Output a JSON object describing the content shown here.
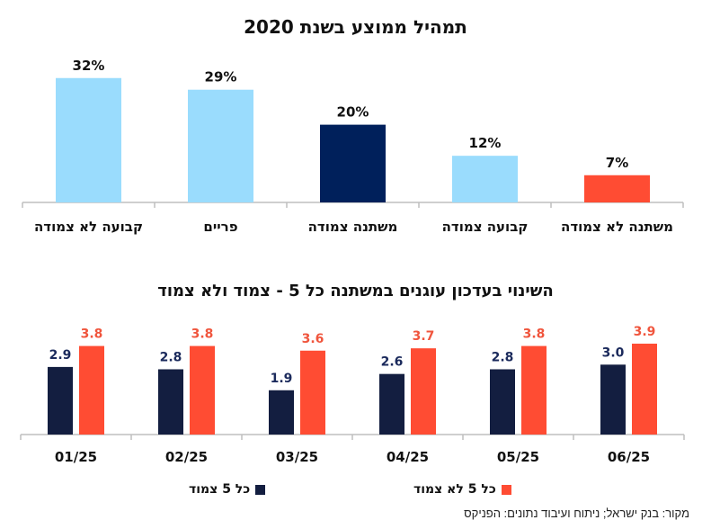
{
  "colors": {
    "light_blue": "#9ADCFD",
    "navy": "#00205B",
    "red": "#FF4C33",
    "navy_dark": "#131E40",
    "axis": "#BFBFBF",
    "text": "#111111"
  },
  "chart_data": [
    {
      "type": "bar",
      "title": "תמהיל ממוצע בשנת 2020",
      "categories": [
        "קבועה לא צמודה",
        "פריים",
        "משתנה צמודה",
        "קבועה צמודה",
        "משתנה לא צמודה"
      ],
      "values": [
        32,
        29,
        20,
        12,
        7
      ],
      "value_labels": [
        "32%",
        "29%",
        "20%",
        "12%",
        "7%"
      ],
      "bar_colors": [
        "#9ADCFD",
        "#9ADCFD",
        "#00205B",
        "#9ADCFD",
        "#FF4C33"
      ],
      "xlabel": "",
      "ylabel": "",
      "unit": "%",
      "ylim": [
        0,
        35
      ],
      "grid": false,
      "legend": "none"
    },
    {
      "type": "bar",
      "title": "השינוי בעדכון עוגנים במשתנה כל 5 - צמוד ולא צמוד",
      "categories": [
        "01/25",
        "02/25",
        "03/25",
        "04/25",
        "05/25",
        "06/25"
      ],
      "series": [
        {
          "name": "כל 5 צמוד",
          "color": "#131E40",
          "values": [
            2.9,
            2.8,
            1.9,
            2.6,
            2.8,
            3.0
          ],
          "labels": [
            "2.9",
            "2.8",
            "1.9",
            "2.6",
            "2.8",
            "3.0"
          ]
        },
        {
          "name": "כל 5 לא צמוד",
          "color": "#FF4C33",
          "values": [
            3.8,
            3.8,
            3.6,
            3.7,
            3.8,
            3.9
          ],
          "labels": [
            "3.8",
            "3.8",
            "3.6",
            "3.7",
            "3.8",
            "3.9"
          ]
        }
      ],
      "xlabel": "",
      "ylabel": "",
      "ylim": [
        0,
        4.2
      ],
      "grid": false,
      "legend": "bottom"
    }
  ],
  "legend": {
    "series_a": "כל 5 צמוד",
    "series_b": "כל 5 לא צמוד"
  },
  "source": "מקור: בנק ישראל; ניתוח ועיבוד נתונים: הפניקס"
}
